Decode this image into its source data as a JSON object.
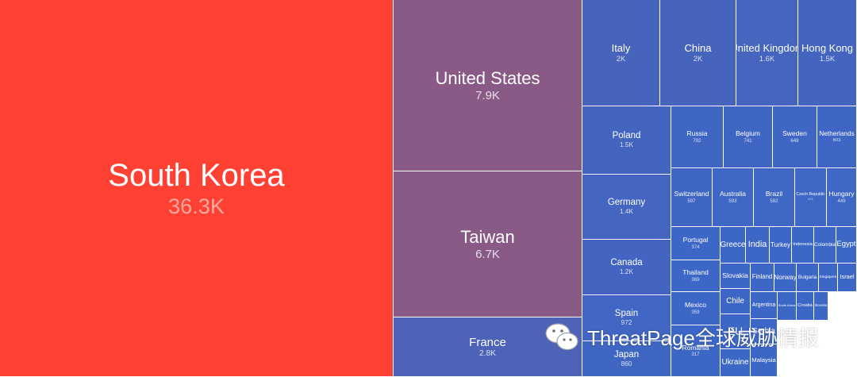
{
  "watermark": {
    "text": "ThreatPage全球威胁情报",
    "icon": "wechat-icon"
  },
  "chart_data": {
    "type": "treemap",
    "title": "",
    "value_scale": "count",
    "colors": {
      "high": "#ff4133",
      "mid": "#8a5a86",
      "low": "#3d67c7"
    },
    "items": [
      {
        "name": "South Korea",
        "label": "36.3K",
        "value": 36300
      },
      {
        "name": "United States",
        "label": "7.9K",
        "value": 7900
      },
      {
        "name": "Taiwan",
        "label": "6.7K",
        "value": 6700
      },
      {
        "name": "France",
        "label": "2.8K",
        "value": 2800
      },
      {
        "name": "Italy",
        "label": "2K",
        "value": 2000
      },
      {
        "name": "China",
        "label": "2K",
        "value": 2000
      },
      {
        "name": "United Kingdom",
        "label": "1.6K",
        "value": 1600
      },
      {
        "name": "Hong Kong",
        "label": "1.5K",
        "value": 1500
      },
      {
        "name": "Poland",
        "label": "1.5K",
        "value": 1500
      },
      {
        "name": "Germany",
        "label": "1.4K",
        "value": 1400
      },
      {
        "name": "Canada",
        "label": "1.2K",
        "value": 1200
      },
      {
        "name": "Spain",
        "label": "972",
        "value": 972
      },
      {
        "name": "Japan",
        "label": "860",
        "value": 860
      },
      {
        "name": "Russia",
        "label": "792",
        "value": 792
      },
      {
        "name": "Belgium",
        "label": "741",
        "value": 741
      },
      {
        "name": "Sweden",
        "label": "648",
        "value": 648
      },
      {
        "name": "Netherlands",
        "label": "603",
        "value": 603
      },
      {
        "name": "Switzerland",
        "label": "597",
        "value": 597
      },
      {
        "name": "Australia",
        "label": "593",
        "value": 593
      },
      {
        "name": "Brazil",
        "label": "582",
        "value": 582
      },
      {
        "name": "Czech Republic",
        "label": "474",
        "value": 474
      },
      {
        "name": "Hungary",
        "label": "449",
        "value": 449
      },
      {
        "name": "Portugal",
        "label": "374",
        "value": 374
      },
      {
        "name": "Thailand",
        "label": "369",
        "value": 369
      },
      {
        "name": "Mexico",
        "label": "359",
        "value": 359
      },
      {
        "name": "Romania",
        "label": "317",
        "value": 317
      },
      {
        "name": "Greece",
        "label": "",
        "value": 251
      },
      {
        "name": "India",
        "label": "",
        "value": 244
      },
      {
        "name": "Turkey",
        "label": "",
        "value": 236
      },
      {
        "name": "Indonesia",
        "label": "",
        "value": 225
      },
      {
        "name": "Colombia",
        "label": "",
        "value": 219
      },
      {
        "name": "Egypt",
        "label": "",
        "value": 198
      },
      {
        "name": "Slovakia",
        "label": "",
        "value": 186
      },
      {
        "name": "Chile",
        "label": "",
        "value": 180
      },
      {
        "name": "Finland",
        "label": "",
        "value": 175
      },
      {
        "name": "Norway",
        "label": "",
        "value": 170
      },
      {
        "name": "Bulgaria",
        "label": "",
        "value": 165
      },
      {
        "name": "Singapore",
        "label": "",
        "value": 160
      },
      {
        "name": "Israel",
        "label": "",
        "value": 155
      },
      {
        "name": "Argentina",
        "label": "",
        "value": 150
      },
      {
        "name": "EU",
        "label": "",
        "value": 140
      },
      {
        "name": "Serbia",
        "label": "",
        "value": 130
      },
      {
        "name": "South Africa",
        "label": "",
        "value": 125
      },
      {
        "name": "Croatia",
        "label": "",
        "value": 118
      },
      {
        "name": "Slovenia",
        "label": "",
        "value": 112
      },
      {
        "name": "Ukraine",
        "label": "",
        "value": 172
      },
      {
        "name": "Malaysia",
        "label": "",
        "value": 100
      }
    ]
  }
}
